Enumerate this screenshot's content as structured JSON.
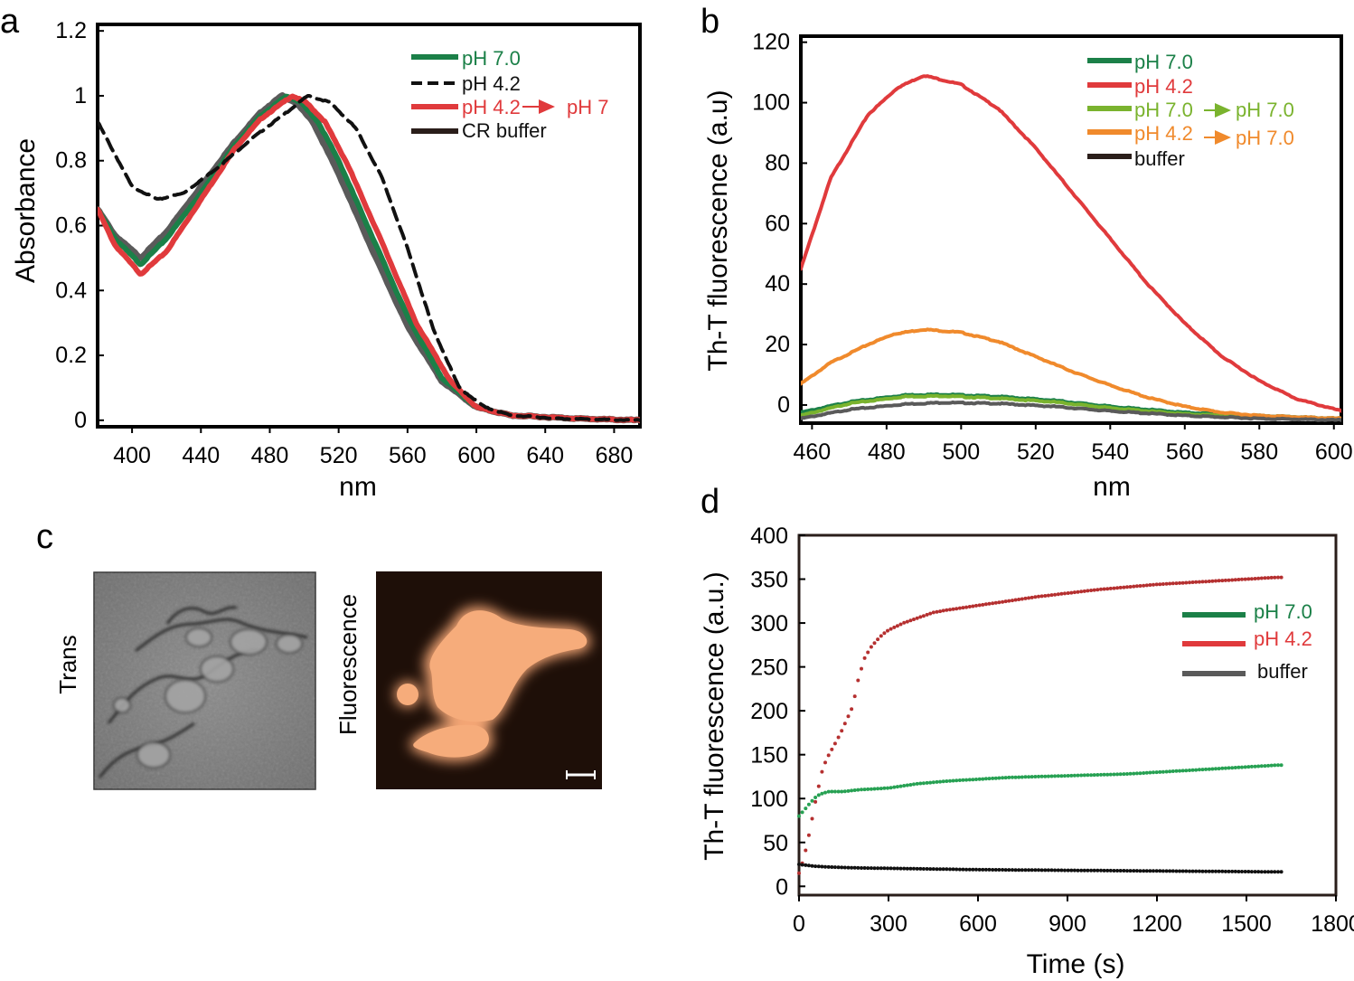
{
  "chart_data": [
    {
      "panel": "a",
      "type": "line",
      "xlabel": "nm",
      "ylabel": "Absorbance",
      "xlim": [
        380,
        695
      ],
      "ylim": [
        -0.02,
        1.22
      ],
      "xticks": [
        400,
        440,
        480,
        520,
        560,
        600,
        640,
        680
      ],
      "yticks": [
        {
          "v": 0,
          "label": "0"
        },
        {
          "v": 0.2,
          "label": "0.2"
        },
        {
          "v": 0.4,
          "label": "0.4"
        },
        {
          "v": 0.6,
          "label": "0.6"
        },
        {
          "v": 0.8,
          "label": "0.8"
        },
        {
          "v": 1.0,
          "label": "1"
        },
        {
          "v": 1.2,
          "label": "1.2"
        }
      ],
      "series": [
        {
          "name": "CR buffer",
          "legend": "CR buffer",
          "color": "#5a5a5a",
          "width": 7,
          "dash": "",
          "x": [
            380,
            390,
            405,
            420,
            440,
            460,
            475,
            487,
            495,
            505,
            520,
            540,
            560,
            580,
            600,
            620,
            640,
            660,
            695
          ],
          "y": [
            0.65,
            0.57,
            0.5,
            0.58,
            0.72,
            0.86,
            0.95,
            1.0,
            0.98,
            0.92,
            0.76,
            0.52,
            0.29,
            0.12,
            0.04,
            0.015,
            0.01,
            0.005,
            0.0
          ]
        },
        {
          "name": "pH 7.0",
          "legend": "pH 7.0",
          "color": "#1b8048",
          "width": 6,
          "dash": "",
          "x": [
            380,
            390,
            405,
            420,
            440,
            460,
            475,
            490,
            498,
            508,
            520,
            540,
            560,
            580,
            600,
            620,
            640,
            660,
            695
          ],
          "y": [
            0.65,
            0.56,
            0.48,
            0.56,
            0.7,
            0.85,
            0.94,
            1.0,
            0.98,
            0.92,
            0.8,
            0.56,
            0.32,
            0.13,
            0.04,
            0.015,
            0.01,
            0.005,
            0.0
          ]
        },
        {
          "name": "pH 4.2 to pH 7",
          "legend": "pH 4.2",
          "legend_suffix": "pH 7",
          "color": "#e03a3c",
          "width": 6,
          "dash": "",
          "x": [
            380,
            390,
            405,
            420,
            440,
            460,
            475,
            493,
            501,
            512,
            525,
            545,
            565,
            585,
            600,
            620,
            640,
            660,
            695
          ],
          "y": [
            0.65,
            0.54,
            0.45,
            0.52,
            0.68,
            0.84,
            0.93,
            1.0,
            0.98,
            0.92,
            0.79,
            0.55,
            0.3,
            0.12,
            0.04,
            0.015,
            0.01,
            0.005,
            0.0
          ]
        },
        {
          "name": "pH 4.2",
          "legend": "pH 4.2",
          "color": "#111111",
          "width": 4,
          "dash": "14,8",
          "x": [
            380,
            390,
            400,
            415,
            430,
            450,
            470,
            490,
            502,
            515,
            530,
            545,
            560,
            575,
            590,
            605,
            620,
            650,
            695
          ],
          "y": [
            0.92,
            0.82,
            0.72,
            0.68,
            0.7,
            0.78,
            0.87,
            0.95,
            1.0,
            0.98,
            0.9,
            0.75,
            0.53,
            0.28,
            0.1,
            0.04,
            0.015,
            0.005,
            0.0
          ]
        }
      ]
    },
    {
      "panel": "b",
      "type": "line",
      "xlabel": "nm",
      "ylabel": "Th-T fluorescence (a.u)",
      "xlim": [
        457,
        602
      ],
      "ylim": [
        -6,
        122
      ],
      "xticks": [
        460,
        480,
        500,
        520,
        540,
        560,
        580,
        600
      ],
      "yticks": [
        {
          "v": 0,
          "label": "0"
        },
        {
          "v": 20,
          "label": "20"
        },
        {
          "v": 40,
          "label": "40"
        },
        {
          "v": 60,
          "label": "60"
        },
        {
          "v": 80,
          "label": "80"
        },
        {
          "v": 100,
          "label": "100"
        },
        {
          "v": 120,
          "label": "120"
        }
      ],
      "series": [
        {
          "name": "pH 7.0",
          "legend": "pH 7.0",
          "color": "#1b8048",
          "x": [
            457,
            470,
            485,
            495,
            510,
            525,
            540,
            560,
            580,
            602
          ],
          "y": [
            -2.5,
            1.0,
            3.3,
            3.5,
            2.8,
            1.5,
            -0.5,
            -2.5,
            -3.5,
            -4.5
          ]
        },
        {
          "name": "pH 4.2",
          "legend": "pH 4.2",
          "color": "#e03a3c",
          "x": [
            457,
            465,
            475,
            483,
            490,
            500,
            510,
            520,
            530,
            540,
            550,
            560,
            570,
            580,
            590,
            602
          ],
          "y": [
            45,
            75,
            96,
            105,
            109,
            106,
            98,
            85,
            70,
            55,
            40,
            27,
            16,
            8,
            2,
            -2
          ]
        },
        {
          "name": "pH 7.0 to pH 7.0",
          "legend": "pH 7.0",
          "legend_suffix": "pH 7.0",
          "color": "#7ab32e",
          "x": [
            457,
            470,
            485,
            495,
            510,
            525,
            540,
            560,
            580,
            602
          ],
          "y": [
            -3.5,
            0.5,
            2.8,
            3.0,
            2.2,
            1.0,
            -1.0,
            -3.0,
            -4.0,
            -4.8
          ]
        },
        {
          "name": "pH 4.2 to pH 7.0",
          "legend": "pH 4.2",
          "legend_suffix": "pH 7.0",
          "color": "#f08a2c",
          "x": [
            457,
            465,
            475,
            482,
            490,
            500,
            510,
            520,
            530,
            540,
            550,
            560,
            570,
            580,
            590,
            602
          ],
          "y": [
            7,
            14,
            20,
            23.5,
            25,
            24,
            21,
            16,
            11,
            6.5,
            2.5,
            -0.5,
            -2.5,
            -3.5,
            -4,
            -4.5
          ]
        },
        {
          "name": "buffer",
          "legend": "buffer",
          "color": "#5a5a5a",
          "x": [
            457,
            470,
            485,
            495,
            510,
            525,
            540,
            560,
            580,
            602
          ],
          "y": [
            -4.5,
            -1.5,
            0.3,
            0.8,
            0.5,
            -0.5,
            -2.0,
            -3.5,
            -4.5,
            -5.0
          ]
        }
      ]
    },
    {
      "panel": "d",
      "type": "scatter",
      "xlabel": "Time (s)",
      "ylabel": "Th-T fluorescence (a.u.)",
      "xlim": [
        0,
        1800
      ],
      "ylim": [
        -10,
        400
      ],
      "xticks": [
        0,
        300,
        600,
        900,
        1200,
        1500,
        1800
      ],
      "yticks": [
        {
          "v": 0,
          "label": "0"
        },
        {
          "v": 50,
          "label": "50"
        },
        {
          "v": 100,
          "label": "100"
        },
        {
          "v": 150,
          "label": "150"
        },
        {
          "v": 200,
          "label": "200"
        },
        {
          "v": 250,
          "label": "250"
        },
        {
          "v": 300,
          "label": "300"
        },
        {
          "v": 350,
          "label": "350"
        },
        {
          "v": 400,
          "label": "400"
        }
      ],
      "series": [
        {
          "name": "pH 7.0",
          "legend": "pH 7.0",
          "color": "#27a153",
          "x": [
            0,
            20,
            40,
            60,
            80,
            100,
            150,
            200,
            300,
            400,
            500,
            600,
            700,
            800,
            900,
            1000,
            1100,
            1200,
            1300,
            1400,
            1500,
            1600
          ],
          "y": [
            80,
            88,
            96,
            103,
            106,
            108,
            108,
            110,
            112,
            117,
            120,
            122,
            124,
            125,
            126,
            127,
            128,
            130,
            132,
            134,
            136,
            138
          ]
        },
        {
          "name": "pH 4.2",
          "legend": "pH 4.2",
          "color": "#b53030",
          "x": [
            0,
            10,
            25,
            40,
            60,
            80,
            100,
            120,
            140,
            160,
            180,
            200,
            220,
            240,
            260,
            280,
            300,
            350,
            400,
            450,
            500,
            600,
            700,
            800,
            900,
            1000,
            1100,
            1200,
            1300,
            1400,
            1500,
            1600
          ],
          "y": [
            15,
            25,
            45,
            70,
            105,
            135,
            150,
            162,
            175,
            190,
            205,
            238,
            260,
            272,
            280,
            287,
            292,
            300,
            306,
            312,
            315,
            320,
            325,
            330,
            334,
            338,
            341,
            344,
            346,
            348,
            350,
            352
          ]
        },
        {
          "name": "buffer",
          "legend": "buffer",
          "color": "#111111",
          "x": [
            0,
            50,
            100,
            200,
            400,
            600,
            800,
            1000,
            1200,
            1400,
            1600
          ],
          "y": [
            25,
            23,
            22,
            21,
            20,
            19,
            18.5,
            18,
            17.5,
            17,
            16.5
          ]
        }
      ]
    }
  ],
  "panels": {
    "a": {
      "label": "a"
    },
    "b": {
      "label": "b"
    },
    "c": {
      "label": "c",
      "left_caption": "Trans",
      "right_caption": "Fluorescence"
    },
    "d": {
      "label": "d"
    }
  },
  "legend_colors": {
    "d_buffer": "#5a5a5a",
    "d_ph70": "#1b8048",
    "d_ph42": "#e03a3c"
  }
}
